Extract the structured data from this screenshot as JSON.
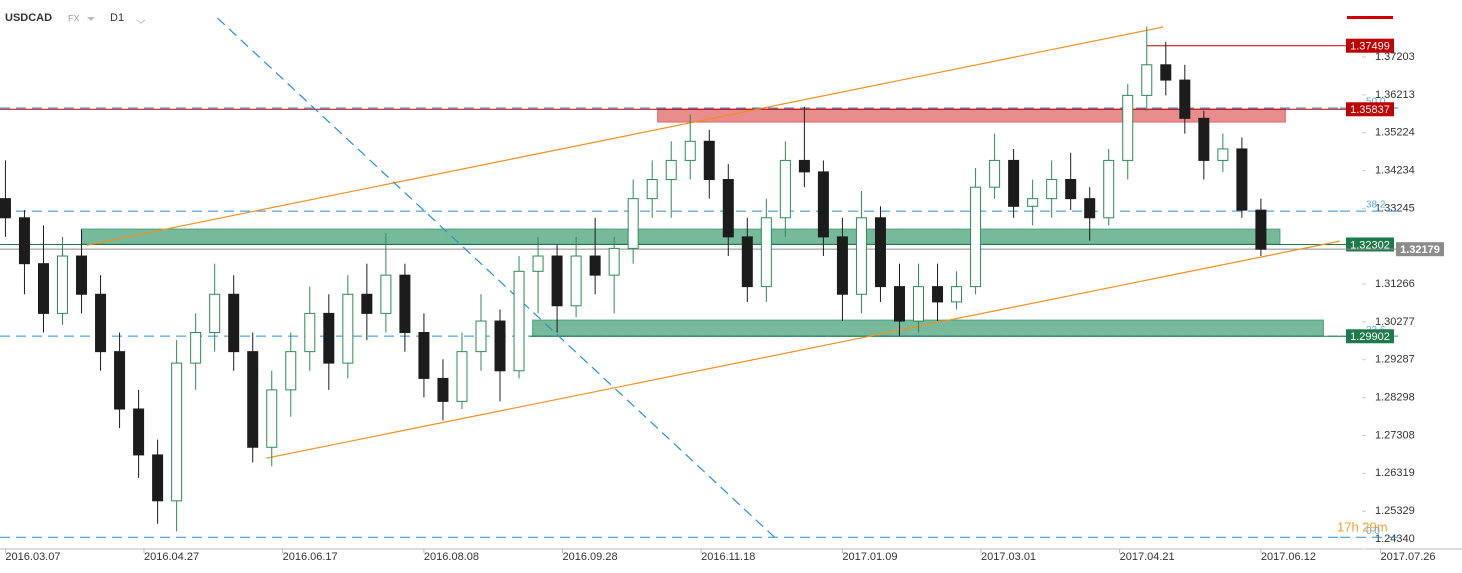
{
  "chart_data": {
    "type": "candlestick",
    "symbol": "USDCAD",
    "market": "FX",
    "timeframe": "D1",
    "countdown": "17h 29m",
    "xlim": [
      "2016.03.05",
      "2017.08.25"
    ],
    "xticks": [
      "2016.03.07",
      "2016.04.27",
      "2016.06.17",
      "2016.08.08",
      "2016.09.28",
      "2016.11.18",
      "2017.01.09",
      "2017.03.01",
      "2017.04.21",
      "2017.06.12",
      "2017.07.26"
    ],
    "ylim": [
      1.2434,
      1.38694
    ],
    "yticks": [
      1.37203,
      1.36213,
      1.35224,
      1.34234,
      1.33245,
      1.31266,
      1.30277,
      1.29287,
      1.28298,
      1.27308,
      1.26319,
      1.25329,
      {
        "value": 1.2434,
        "label": "1.24340"
      }
    ],
    "up_color": "#2e8b57",
    "down_color": "#1c1c1c",
    "x": [
      "2016.03.07",
      "2016.03.14",
      "2016.03.21",
      "2016.03.28",
      "2016.04.04",
      "2016.04.11",
      "2016.04.18",
      "2016.04.25",
      "2016.05.02",
      "2016.05.09",
      "2016.05.16",
      "2016.05.23",
      "2016.05.30",
      "2016.06.06",
      "2016.06.13",
      "2016.06.20",
      "2016.06.27",
      "2016.07.04",
      "2016.07.11",
      "2016.07.18",
      "2016.07.25",
      "2016.08.01",
      "2016.08.08",
      "2016.08.15",
      "2016.08.22",
      "2016.08.29",
      "2016.09.05",
      "2016.09.12",
      "2016.09.19",
      "2016.09.26",
      "2016.10.03",
      "2016.10.10",
      "2016.10.17",
      "2016.10.24",
      "2016.10.31",
      "2016.11.07",
      "2016.11.14",
      "2016.11.21",
      "2016.11.28",
      "2016.12.05",
      "2016.12.12",
      "2016.12.19",
      "2016.12.26",
      "2017.01.02",
      "2017.01.09",
      "2017.01.16",
      "2017.01.23",
      "2017.01.30",
      "2017.02.06",
      "2017.02.13",
      "2017.02.20",
      "2017.02.27",
      "2017.03.06",
      "2017.03.13",
      "2017.03.20",
      "2017.03.27",
      "2017.04.03",
      "2017.04.10",
      "2017.04.17",
      "2017.04.24",
      "2017.05.01",
      "2017.05.08",
      "2017.05.15",
      "2017.05.22",
      "2017.05.29",
      "2017.06.05",
      "2017.06.12"
    ],
    "open": [
      1.335,
      1.33,
      1.318,
      1.305,
      1.32,
      1.31,
      1.295,
      1.28,
      1.268,
      1.256,
      1.292,
      1.3,
      1.31,
      1.295,
      1.27,
      1.285,
      1.295,
      1.305,
      1.292,
      1.31,
      1.305,
      1.315,
      1.3,
      1.288,
      1.282,
      1.295,
      1.303,
      1.29,
      1.316,
      1.32,
      1.307,
      1.32,
      1.315,
      1.322,
      1.335,
      1.34,
      1.345,
      1.35,
      1.34,
      1.325,
      1.312,
      1.33,
      1.345,
      1.342,
      1.325,
      1.31,
      1.33,
      1.312,
      1.303,
      1.312,
      1.308,
      1.312,
      1.338,
      1.345,
      1.333,
      1.335,
      1.34,
      1.335,
      1.33,
      1.345,
      1.362,
      1.37,
      1.366,
      1.356,
      1.345,
      1.348,
      1.332
    ],
    "high": [
      1.345,
      1.332,
      1.328,
      1.325,
      1.327,
      1.315,
      1.3,
      1.285,
      1.272,
      1.298,
      1.305,
      1.318,
      1.315,
      1.3,
      1.29,
      1.3,
      1.312,
      1.31,
      1.315,
      1.318,
      1.326,
      1.318,
      1.305,
      1.293,
      1.3,
      1.31,
      1.306,
      1.32,
      1.325,
      1.323,
      1.325,
      1.33,
      1.325,
      1.34,
      1.345,
      1.35,
      1.357,
      1.353,
      1.344,
      1.33,
      1.335,
      1.35,
      1.359,
      1.345,
      1.33,
      1.337,
      1.333,
      1.318,
      1.318,
      1.318,
      1.316,
      1.343,
      1.352,
      1.348,
      1.34,
      1.345,
      1.347,
      1.338,
      1.348,
      1.365,
      1.38,
      1.376,
      1.37,
      1.358,
      1.352,
      1.351,
      1.335
    ],
    "low": [
      1.325,
      1.31,
      1.3,
      1.302,
      1.305,
      1.29,
      1.275,
      1.262,
      1.25,
      1.248,
      1.285,
      1.295,
      1.29,
      1.266,
      1.265,
      1.278,
      1.29,
      1.285,
      1.288,
      1.298,
      1.3,
      1.295,
      1.283,
      1.277,
      1.28,
      1.29,
      1.282,
      1.288,
      1.305,
      1.3,
      1.304,
      1.31,
      1.305,
      1.318,
      1.33,
      1.33,
      1.34,
      1.335,
      1.32,
      1.308,
      1.308,
      1.325,
      1.338,
      1.32,
      1.303,
      1.305,
      1.308,
      1.299,
      1.3,
      1.303,
      1.306,
      1.31,
      1.335,
      1.33,
      1.328,
      1.33,
      1.332,
      1.324,
      1.328,
      1.34,
      1.358,
      1.362,
      1.352,
      1.34,
      1.342,
      1.33,
      1.32
    ],
    "close": [
      1.33,
      1.318,
      1.305,
      1.32,
      1.31,
      1.295,
      1.28,
      1.268,
      1.256,
      1.292,
      1.3,
      1.31,
      1.295,
      1.27,
      1.285,
      1.295,
      1.305,
      1.292,
      1.31,
      1.305,
      1.315,
      1.3,
      1.288,
      1.282,
      1.295,
      1.303,
      1.29,
      1.316,
      1.32,
      1.307,
      1.32,
      1.315,
      1.322,
      1.335,
      1.34,
      1.345,
      1.35,
      1.34,
      1.325,
      1.312,
      1.33,
      1.345,
      1.342,
      1.325,
      1.31,
      1.33,
      1.312,
      1.303,
      1.312,
      1.308,
      1.312,
      1.338,
      1.345,
      1.333,
      1.335,
      1.34,
      1.335,
      1.33,
      1.345,
      1.362,
      1.37,
      1.366,
      1.356,
      1.345,
      1.348,
      1.332,
      1.32179
    ],
    "levels": [
      {
        "value": 1.37499,
        "color": "#c00000",
        "from": "2017.05.01"
      },
      {
        "value": 1.35837,
        "color": "#c00000",
        "from": "2016.03.05"
      },
      {
        "value": 1.32302,
        "color": "#1e7a4a",
        "from": "2016.03.05"
      },
      {
        "value": 1.32179,
        "color": "#8c8c8c",
        "from": "2016.03.05"
      },
      {
        "value": 1.29902,
        "color": "#1e7a4a",
        "from": "2016.09.16"
      }
    ],
    "fib_levels": [
      {
        "label": "50.0",
        "value": 1.35869
      },
      {
        "label": "38.2",
        "value": 1.33175
      },
      {
        "label": "23.6",
        "value": 1.29905
      },
      {
        "label": "0.0",
        "value": 1.24648
      }
    ],
    "zones": [
      {
        "from": "2016.11.02",
        "to": "2017.06.21",
        "low": 1.35503,
        "high": 1.35843,
        "color": "#e06666"
      },
      {
        "from": "2016.04.04",
        "to": "2017.06.19",
        "low": 1.32312,
        "high": 1.32704,
        "color": "#4aa37a"
      },
      {
        "from": "2016.09.17",
        "to": "2017.07.05",
        "low": 1.29905,
        "high": 1.30324,
        "color": "#4aa37a"
      }
    ],
    "lines": [
      {
        "x": [
          "2016.04.06",
          "2017.05.07"
        ],
        "y": [
          1.32285,
          1.37988
        ],
        "color": "#f0901e",
        "dashed": false
      },
      {
        "x": [
          "2016.06.11",
          "2017.07.11"
        ],
        "y": [
          1.26714,
          1.3239
        ],
        "color": "#f0901e",
        "dashed": false
      },
      {
        "x": [
          "2016.05.24",
          "2016.12.15"
        ],
        "y": [
          1.38223,
          1.24648
        ],
        "color": "#2a8fd8",
        "dashed": true
      }
    ]
  }
}
